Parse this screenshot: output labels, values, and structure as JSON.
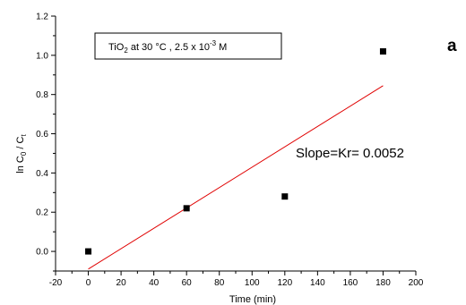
{
  "chart_data": {
    "type": "scatter",
    "panel_letter": "a",
    "xlabel": "Time (min)",
    "ylabel": {
      "main": "ln C",
      "sub0": "0",
      "mid": " / C",
      "sub1": "t"
    },
    "xlim": [
      -20,
      200
    ],
    "ylim": [
      -0.1,
      1.2
    ],
    "x_ticks": [
      -20,
      0,
      20,
      40,
      60,
      80,
      100,
      120,
      140,
      160,
      180,
      200
    ],
    "y_ticks": [
      0.0,
      0.2,
      0.4,
      0.6,
      0.8,
      1.0,
      1.2
    ],
    "y_tick_labels": [
      "0.0",
      "0.2",
      "0.4",
      "0.6",
      "0.8",
      "1.0",
      "1.2"
    ],
    "series": [
      {
        "marker": "square",
        "color": "#000000",
        "points": [
          {
            "x": 0,
            "y": 0.0
          },
          {
            "x": 60,
            "y": 0.22
          },
          {
            "x": 120,
            "y": 0.28
          },
          {
            "x": 180,
            "y": 1.02
          }
        ]
      }
    ],
    "fit_line": {
      "color": "#e00000",
      "x0": 0,
      "y0": -0.09,
      "x1": 180,
      "y1": 0.845
    },
    "legend_box": {
      "t1": "TiO",
      "t1_sub": "2",
      "t2": " at 30 °C , 2.5 x 10",
      "t2_sup": "-3",
      "t3": " M"
    },
    "annotation": "Slope=Kr= 0.0052"
  }
}
